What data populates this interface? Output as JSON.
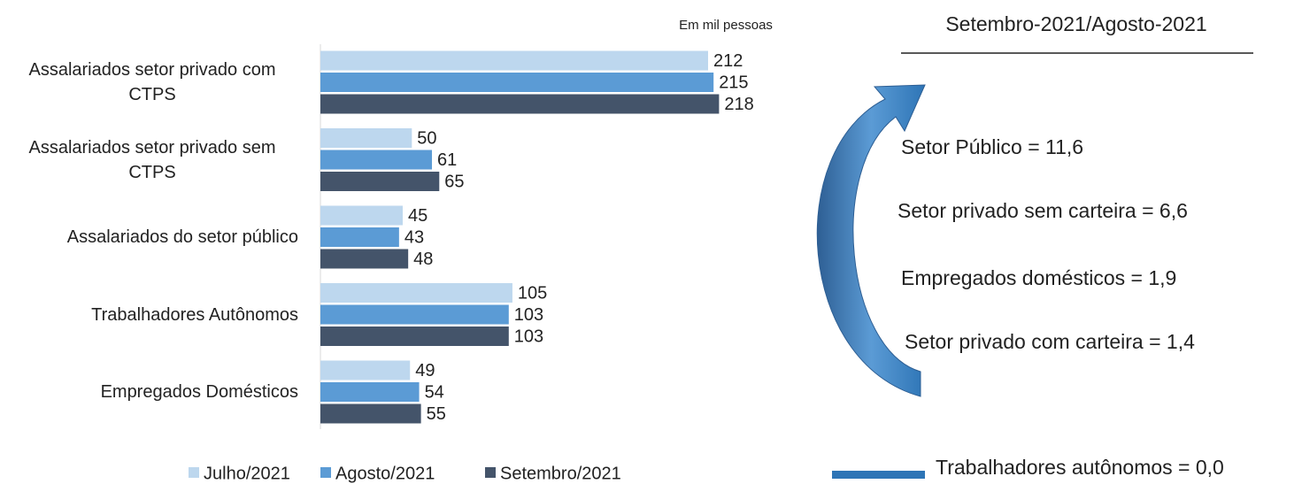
{
  "chart_data": {
    "type": "bar",
    "orientation": "horizontal",
    "unit_note": "Em mil pessoas",
    "categories": [
      "Assalariados setor privado com CTPS",
      "Assalariados setor privado sem CTPS",
      "Assalariados do setor público",
      "Trabalhadores Autônomos",
      "Empregados Domésticos"
    ],
    "series": [
      {
        "name": "Julho/2021",
        "color": "#bdd7ee",
        "values": [
          212,
          50,
          45,
          105,
          49
        ]
      },
      {
        "name": "Agosto/2021",
        "color": "#5b9bd5",
        "values": [
          215,
          61,
          43,
          103,
          54
        ]
      },
      {
        "name": "Setembro/2021",
        "color": "#44546a",
        "values": [
          218,
          65,
          48,
          103,
          55
        ]
      }
    ],
    "legend": "bottom"
  },
  "side_panel": {
    "subtitle": "Setembro-2021/Agosto-2021",
    "annotations": [
      "Setor Público = 11,6",
      "Setor privado sem carteira = 6,6",
      "Empregados domésticos = 1,9",
      "Setor privado com carteira = 1,4"
    ],
    "footnote": "Trabalhadores autônomos = 0,0"
  }
}
